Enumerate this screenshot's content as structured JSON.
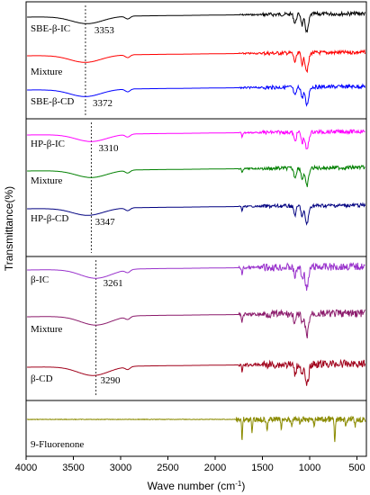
{
  "chart_data": {
    "type": "line",
    "xlabel": "Wave number (cm",
    "xlabel_sup": "-1",
    "xlabel_tail": ")",
    "ylabel": "Transmittance(%)",
    "xlim": [
      4000,
      400
    ],
    "x_ticks": [
      4000,
      3500,
      3000,
      2500,
      2000,
      1500,
      1000,
      500
    ],
    "panels": [
      {
        "marker": 3372,
        "series": [
          {
            "name": "SBE-β-IC",
            "color": "#000000",
            "peak_label": "3353",
            "peak_at": 3353
          },
          {
            "name": "Mixture",
            "color": "#ff0000"
          },
          {
            "name": "SBE-β-CD",
            "color": "#0000ff",
            "peak_label": "3372",
            "peak_at": 3372
          }
        ]
      },
      {
        "marker": 3310,
        "series": [
          {
            "name": "HP-β-IC",
            "color": "#ff00ff",
            "peak_label": "3310",
            "peak_at": 3310
          },
          {
            "name": "Mixture",
            "color": "#008000"
          },
          {
            "name": "HP-β-CD",
            "color": "#000080",
            "peak_label": "3347",
            "peak_at": 3347
          }
        ]
      },
      {
        "marker": 3261,
        "series": [
          {
            "name": "β-IC",
            "color": "#9932cc",
            "peak_label": "3261",
            "peak_at": 3261
          },
          {
            "name": "Mixture",
            "color": "#8b1a6b"
          },
          {
            "name": "β-CD",
            "color": "#a0001a",
            "peak_label": "3290",
            "peak_at": 3290
          }
        ]
      },
      {
        "series": [
          {
            "name": "9-Fluorenone",
            "color": "#8b8b00"
          }
        ]
      }
    ]
  }
}
